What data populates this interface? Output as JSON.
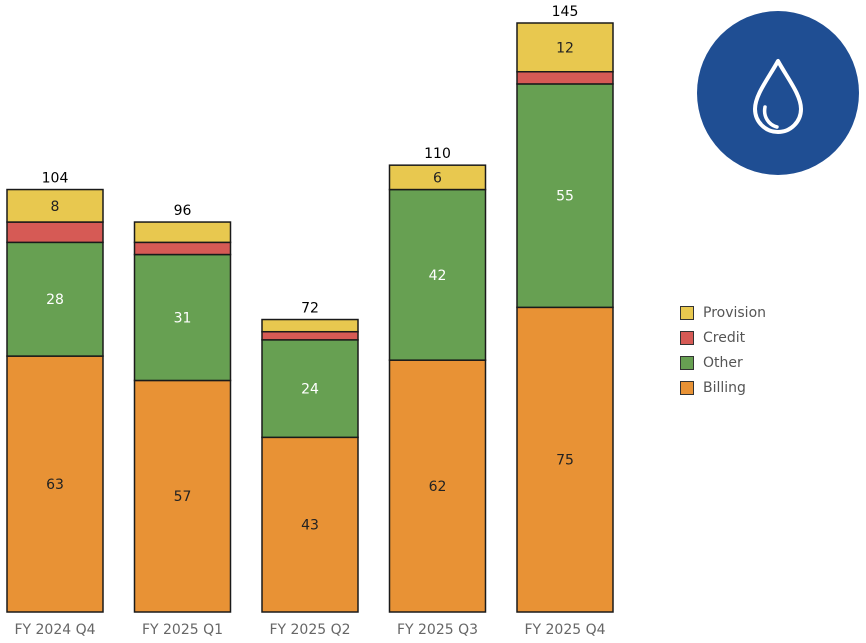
{
  "chart_data": {
    "type": "bar",
    "stacked": true,
    "categories": [
      "FY 2024 Q4",
      "FY 2025 Q1",
      "FY 2025 Q2",
      "FY 2025 Q3",
      "FY 2025 Q4"
    ],
    "series": [
      {
        "name": "Billing",
        "color": "#E89235",
        "values": [
          63,
          57,
          43,
          62,
          75
        ],
        "labels": [
          "63",
          "57",
          "43",
          "62",
          "75"
        ]
      },
      {
        "name": "Other",
        "color": "#67A052",
        "values": [
          28,
          31,
          24,
          42,
          55
        ],
        "labels": [
          "28",
          "31",
          "24",
          "42",
          "55"
        ]
      },
      {
        "name": "Credit",
        "color": "#D65A55",
        "values": [
          5,
          3,
          2,
          0,
          3
        ],
        "labels": [
          "",
          "",
          "",
          "",
          ""
        ]
      },
      {
        "name": "Provision",
        "color": "#E8C84F",
        "values": [
          8,
          5,
          3,
          6,
          12
        ],
        "labels": [
          "8",
          "",
          "",
          "6",
          "12"
        ]
      }
    ],
    "totals": [
      "104",
      "96",
      "72",
      "110",
      "145"
    ],
    "ylim": [
      0,
      145
    ],
    "grid": false,
    "legend_position": "right",
    "legend_order": [
      "Provision",
      "Credit",
      "Other",
      "Billing"
    ]
  },
  "logo": {
    "icon": "water-drop-icon",
    "color": "#1F4E93"
  }
}
